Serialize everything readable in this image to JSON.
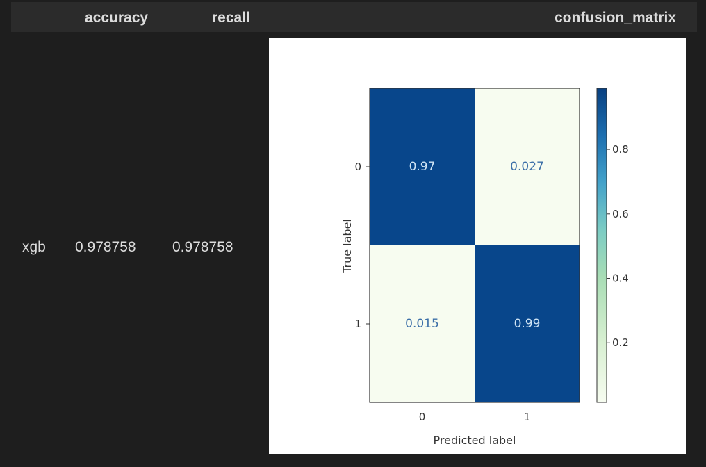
{
  "table": {
    "columns": [
      "",
      "accuracy",
      "recall",
      "confusion_matrix"
    ],
    "rows": [
      {
        "index": "xgb",
        "accuracy": "0.978758",
        "recall": "0.978758"
      }
    ]
  },
  "chart_data": {
    "type": "heatmap",
    "title": "",
    "xlabel": "Predicted label",
    "ylabel": "True label",
    "x_ticks": [
      "0",
      "1"
    ],
    "y_ticks": [
      "0",
      "1"
    ],
    "values": [
      [
        0.97,
        0.027
      ],
      [
        0.015,
        0.99
      ]
    ],
    "labels": [
      [
        "0.97",
        "0.027"
      ],
      [
        "0.015",
        "0.99"
      ]
    ],
    "colormap": "GnBu",
    "colorbar": {
      "ticks": [
        "0.2",
        "0.4",
        "0.6",
        "0.8"
      ],
      "range": [
        0.015,
        0.99
      ]
    },
    "colors": {
      "high": "#08468b",
      "low": "#f7fcf0",
      "high_text": "#d0e4f5",
      "low_text": "#3c6fa8"
    }
  }
}
